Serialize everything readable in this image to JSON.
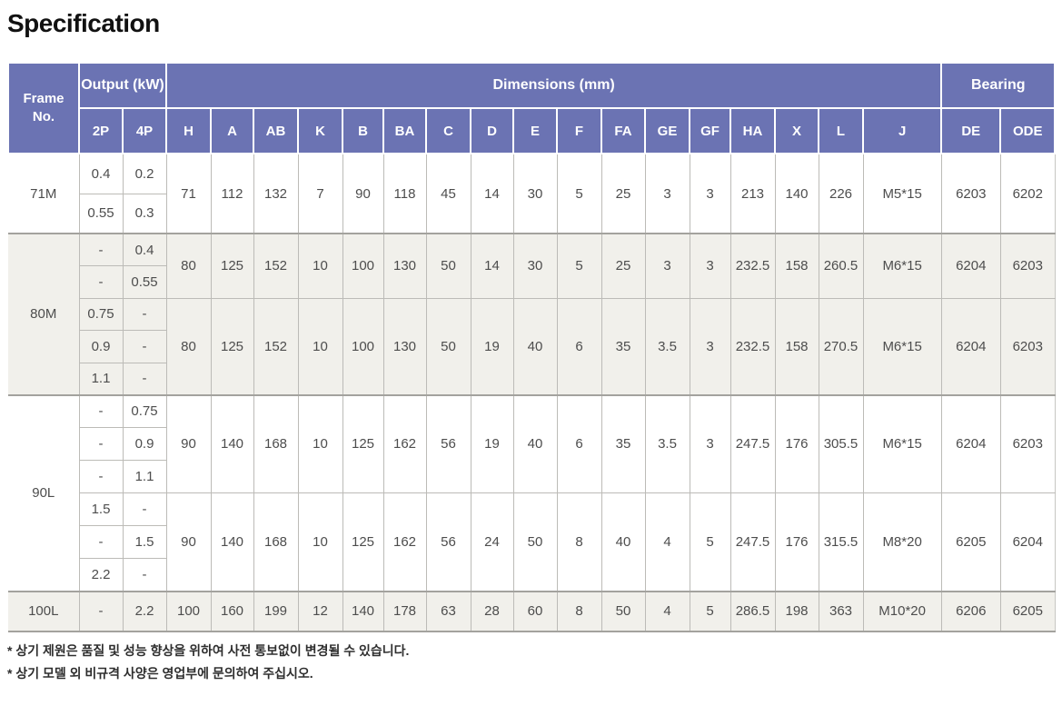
{
  "title": "Specification",
  "table": {
    "header": {
      "frame_no": "Frame\nNo.",
      "output_kw": "Output (kW)",
      "dimensions": "Dimensions (mm)",
      "bearing": "Bearing",
      "sub": [
        "2P",
        "4P",
        "H",
        "A",
        "AB",
        "K",
        "B",
        "BA",
        "C",
        "D",
        "E",
        "F",
        "FA",
        "GE",
        "GF",
        "HA",
        "X",
        "L",
        "J",
        "DE",
        "ODE"
      ]
    },
    "sections": [
      {
        "frame": "71M",
        "output_rows": [
          [
            "0.4",
            "0.2"
          ],
          [
            "0.55",
            "0.3"
          ]
        ],
        "dim_groups": [
          {
            "start": 0,
            "span": 2,
            "values": [
              "71",
              "112",
              "132",
              "7",
              "90",
              "118",
              "45",
              "14",
              "30",
              "5",
              "25",
              "3",
              "3",
              "213",
              "140",
              "226",
              "M5*15",
              "6203",
              "6202"
            ]
          }
        ]
      },
      {
        "frame": "80M",
        "output_rows": [
          [
            "-",
            "0.4"
          ],
          [
            "-",
            "0.55"
          ],
          [
            "0.75",
            "-"
          ],
          [
            "0.9",
            "-"
          ],
          [
            "1.1",
            "-"
          ]
        ],
        "dim_groups": [
          {
            "start": 0,
            "span": 2,
            "values": [
              "80",
              "125",
              "152",
              "10",
              "100",
              "130",
              "50",
              "14",
              "30",
              "5",
              "25",
              "3",
              "3",
              "232.5",
              "158",
              "260.5",
              "M6*15",
              "6204",
              "6203"
            ]
          },
          {
            "start": 2,
            "span": 3,
            "values": [
              "80",
              "125",
              "152",
              "10",
              "100",
              "130",
              "50",
              "19",
              "40",
              "6",
              "35",
              "3.5",
              "3",
              "232.5",
              "158",
              "270.5",
              "M6*15",
              "6204",
              "6203"
            ]
          }
        ]
      },
      {
        "frame": "90L",
        "output_rows": [
          [
            "-",
            "0.75"
          ],
          [
            "-",
            "0.9"
          ],
          [
            "-",
            "1.1"
          ],
          [
            "1.5",
            "-"
          ],
          [
            "-",
            "1.5"
          ],
          [
            "2.2",
            "-"
          ]
        ],
        "dim_groups": [
          {
            "start": 0,
            "span": 3,
            "values": [
              "90",
              "140",
              "168",
              "10",
              "125",
              "162",
              "56",
              "19",
              "40",
              "6",
              "35",
              "3.5",
              "3",
              "247.5",
              "176",
              "305.5",
              "M6*15",
              "6204",
              "6203"
            ]
          },
          {
            "start": 3,
            "span": 3,
            "values": [
              "90",
              "140",
              "168",
              "10",
              "125",
              "162",
              "56",
              "24",
              "50",
              "8",
              "40",
              "4",
              "5",
              "247.5",
              "176",
              "315.5",
              "M8*20",
              "6205",
              "6204"
            ]
          }
        ]
      },
      {
        "frame": "100L",
        "output_rows": [
          [
            "-",
            "2.2"
          ]
        ],
        "dim_groups": [
          {
            "start": 0,
            "span": 1,
            "values": [
              "100",
              "160",
              "199",
              "12",
              "140",
              "178",
              "63",
              "28",
              "60",
              "8",
              "50",
              "4",
              "5",
              "286.5",
              "198",
              "363",
              "M10*20",
              "6206",
              "6205"
            ]
          }
        ]
      }
    ]
  },
  "notes": [
    "* 상기 제원은 품질 및 성능 향상을 위하여 사전 통보없이 변경될 수 있습니다.",
    "* 상기 모델 외 비규격 사양은 영업부에 문의하여 주십시오."
  ],
  "colors": {
    "header_bg": "#6b73b3",
    "alt_row_bg": "#f1f0eb",
    "section_border": "#a3a29e",
    "cell_border": "#bcbbb7",
    "body_text": "#4d4d4d"
  }
}
